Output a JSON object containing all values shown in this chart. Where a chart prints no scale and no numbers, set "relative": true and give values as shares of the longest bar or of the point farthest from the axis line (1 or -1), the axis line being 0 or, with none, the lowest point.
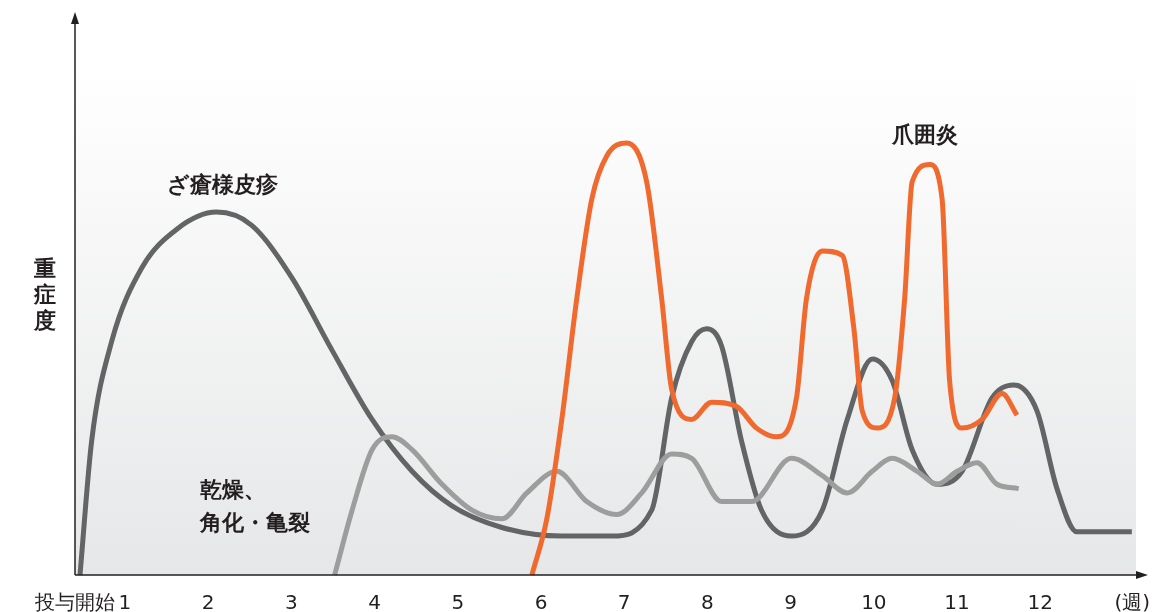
{
  "chart_data": {
    "type": "line",
    "relative": true,
    "ylabel": "重症度",
    "xlabel": "(週)",
    "xlim": [
      0.4,
      13.15
    ],
    "xticks": [
      {
        "value": 0.4,
        "label": "投与開始"
      },
      1,
      2,
      3,
      4,
      5,
      6,
      7,
      8,
      9,
      10,
      11,
      12
    ],
    "series": [
      {
        "name": "ざ瘡様皮疹",
        "color": "#636466",
        "x": [
          0.46,
          0.6,
          0.84,
          1.2,
          1.62,
          2.1,
          2.52,
          3.0,
          3.49,
          3.97,
          4.45,
          4.93,
          5.53,
          6.25,
          6.85,
          7.33,
          7.57,
          7.81,
          7.99,
          8.17,
          8.41,
          8.65,
          9.01,
          9.38,
          9.68,
          9.98,
          10.22,
          10.46,
          10.76,
          11.06,
          11.42,
          11.68,
          11.96,
          12.2,
          12.44,
          12.62,
          13.1
        ],
        "values": [
          0,
          0.31,
          0.54,
          0.71,
          0.8,
          0.84,
          0.81,
          0.69,
          0.52,
          0.36,
          0.24,
          0.16,
          0.11,
          0.09,
          0.09,
          0.15,
          0.41,
          0.54,
          0.57,
          0.53,
          0.31,
          0.15,
          0.09,
          0.15,
          0.36,
          0.5,
          0.45,
          0.29,
          0.21,
          0.24,
          0.41,
          0.44,
          0.38,
          0.2,
          0.1,
          0.1,
          0.1
        ]
      },
      {
        "name": "乾燥、角化・亀裂",
        "color": "#9d9d9d",
        "x": [
          3.52,
          3.73,
          3.97,
          4.21,
          4.45,
          4.81,
          5.17,
          5.53,
          5.83,
          6.19,
          6.55,
          6.91,
          7.21,
          7.57,
          7.81,
          8.17,
          8.53,
          9.01,
          9.38,
          9.68,
          9.98,
          10.22,
          10.52,
          10.76,
          11.0,
          11.24,
          11.48,
          11.74
        ],
        "values": [
          0,
          0.15,
          0.29,
          0.32,
          0.29,
          0.21,
          0.15,
          0.13,
          0.19,
          0.24,
          0.17,
          0.14,
          0.19,
          0.28,
          0.27,
          0.17,
          0.17,
          0.27,
          0.23,
          0.19,
          0.24,
          0.27,
          0.24,
          0.21,
          0.24,
          0.26,
          0.21,
          0.2
        ]
      },
      {
        "name": "爪囲炎",
        "color": "#f0692e",
        "x": [
          5.89,
          6.07,
          6.25,
          6.43,
          6.61,
          6.79,
          7.03,
          7.27,
          7.45,
          7.57,
          7.81,
          8.05,
          8.35,
          8.59,
          8.83,
          9.07,
          9.19,
          9.38,
          9.62,
          9.76,
          9.86,
          10.04,
          10.25,
          10.37,
          10.46,
          10.67,
          10.82,
          10.91,
          11.06,
          11.3,
          11.54,
          11.72
        ],
        "values": [
          0,
          0.13,
          0.36,
          0.64,
          0.87,
          0.97,
          1.0,
          0.91,
          0.64,
          0.43,
          0.36,
          0.4,
          0.39,
          0.34,
          0.32,
          0.41,
          0.64,
          0.75,
          0.74,
          0.57,
          0.38,
          0.34,
          0.41,
          0.64,
          0.91,
          0.95,
          0.87,
          0.45,
          0.34,
          0.36,
          0.42,
          0.37
        ]
      }
    ]
  }
}
